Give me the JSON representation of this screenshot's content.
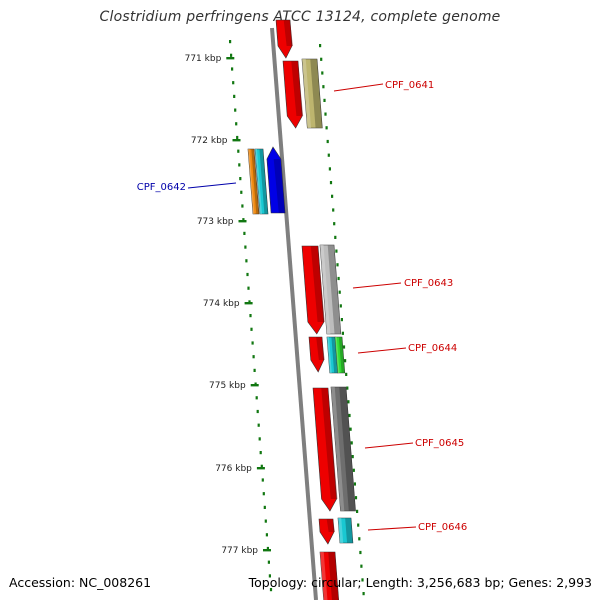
{
  "title": "Clostridium perfringens ATCC 13124, complete genome",
  "accession_text": "Accession: NC_008261",
  "topology_text": "Topology: circular; Length: 3,256,683 bp; Genes: 2,993",
  "scale_labels": [
    "771 kbp",
    "772 kbp",
    "773 kbp",
    "774 kbp",
    "775 kbp",
    "776 kbp",
    "777 kbp"
  ],
  "gene_labels": [
    {
      "name": "CPF_0641",
      "color": "#cc0000"
    },
    {
      "name": "CPF_0642",
      "color": "#0000aa"
    },
    {
      "name": "CPF_0643",
      "color": "#cc0000"
    },
    {
      "name": "CPF_0644",
      "color": "#cc0000"
    },
    {
      "name": "CPF_0645",
      "color": "#cc0000"
    },
    {
      "name": "CPF_0646",
      "color": "#cc0000"
    }
  ],
  "colors": {
    "backbone": "#7f7f7f",
    "scale_dots": "#117711",
    "cds_red": "#ee0000",
    "khaki": "#bdb56e",
    "orange": "#f08a10",
    "cyan": "#19c8d2",
    "blue": "#0000e6",
    "light_gray": "#bdbdbd",
    "green": "#33dd33",
    "dark_gray": "#6e6e6e"
  }
}
